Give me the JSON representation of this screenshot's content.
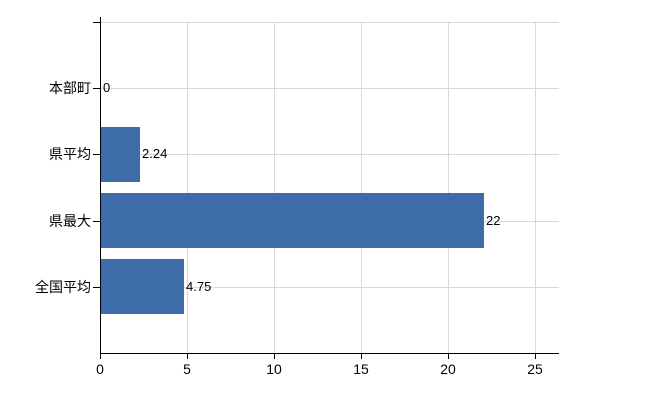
{
  "chart_data": {
    "type": "bar",
    "orientation": "horizontal",
    "title": "",
    "categories": [
      "本部町",
      "県平均",
      "県最大",
      "全国平均"
    ],
    "values": [
      0,
      2.24,
      22,
      4.75
    ],
    "value_labels": [
      "0",
      "2.24",
      "22",
      "4.75"
    ],
    "x_ticks": [
      0,
      5,
      10,
      15,
      20,
      25
    ],
    "x_tick_labels": [
      "0",
      "5",
      "10",
      "15",
      "20",
      "25"
    ],
    "xlim": [
      0,
      25
    ],
    "grid": true,
    "legend": false,
    "colors": {
      "bar": "#3D6CA9",
      "grid": "#D9D9D9",
      "axis": "#000000",
      "text": "#000000",
      "background": "#FFFFFF"
    }
  }
}
